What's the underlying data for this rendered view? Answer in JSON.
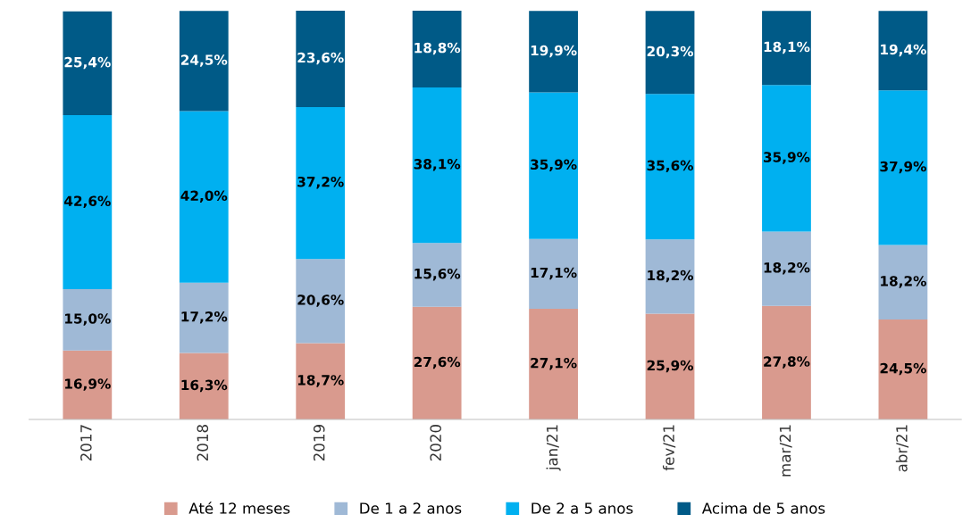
{
  "chart_data": {
    "type": "bar",
    "stacked": true,
    "categories": [
      "2017",
      "2018",
      "2019",
      "2020",
      "jan/21",
      "fev/21",
      "mar/21",
      "abr/21"
    ],
    "series": [
      {
        "name": "Até 12 meses",
        "color": "#d99a8e",
        "values": [
          16.9,
          16.3,
          18.7,
          27.6,
          27.1,
          25.9,
          27.8,
          24.5
        ],
        "value_labels": [
          "16,9%",
          "16,3%",
          "18,7%",
          "27,6%",
          "27,1%",
          "25,9%",
          "27,8%",
          "24,5%"
        ]
      },
      {
        "name": "De 1 a 2 anos",
        "color": "#9fb9d6",
        "values": [
          15.0,
          17.2,
          20.6,
          15.6,
          17.1,
          18.2,
          18.2,
          18.2
        ],
        "value_labels": [
          "15,0%",
          "17,2%",
          "20,6%",
          "15,6%",
          "17,1%",
          "18,2%",
          "18,2%",
          "18,2%"
        ]
      },
      {
        "name": "De 2 a 5 anos",
        "color": "#00b0f0",
        "values": [
          42.6,
          42.0,
          37.2,
          38.1,
          35.9,
          35.6,
          35.9,
          37.9
        ],
        "value_labels": [
          "42,6%",
          "42,0%",
          "37,2%",
          "38,1%",
          "35,9%",
          "35,6%",
          "35,9%",
          "37,9%"
        ]
      },
      {
        "name": "Acima de 5 anos",
        "color": "#005a87",
        "values": [
          25.4,
          24.5,
          23.6,
          18.8,
          19.9,
          20.3,
          18.1,
          19.4
        ],
        "value_labels": [
          "25,4%",
          "24,5%",
          "23,6%",
          "18,8%",
          "19,9%",
          "20,3%",
          "18,1%",
          "19,4%"
        ]
      }
    ],
    "legend": "bottom",
    "tick_labels": "x"
  }
}
